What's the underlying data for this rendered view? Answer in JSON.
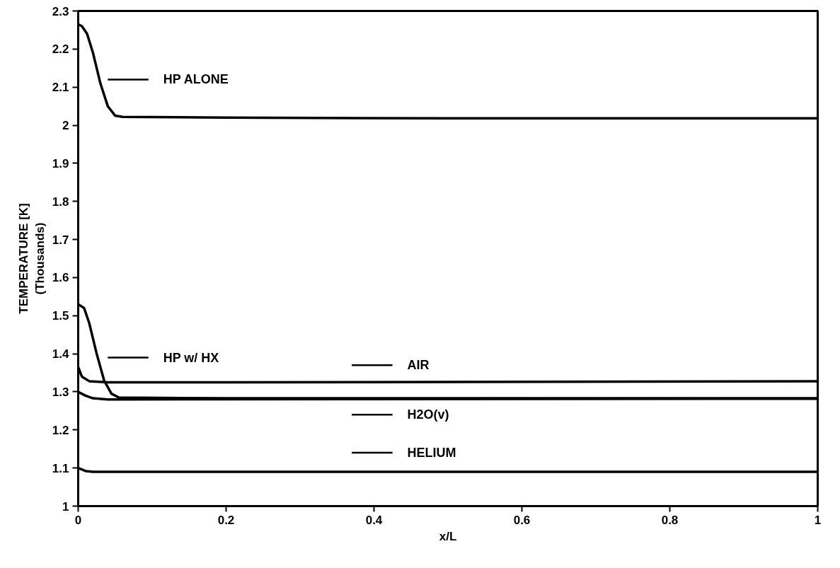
{
  "chart_data": {
    "type": "line",
    "xlabel": "x/L",
    "ylabel": "TEMPERATURE [K]\n(Thousands)",
    "xlim": [
      0,
      1
    ],
    "ylim": [
      1,
      2.3
    ],
    "xticks": [
      0,
      0.2,
      0.4,
      0.6,
      0.8,
      1
    ],
    "yticks": [
      1,
      1.1,
      1.2,
      1.3,
      1.4,
      1.5,
      1.6,
      1.7,
      1.8,
      1.9,
      2,
      2.1,
      2.2,
      2.3
    ],
    "grid": false,
    "legend": "left",
    "marker": "none",
    "line_style": "solid",
    "series": [
      {
        "name": "HP ALONE",
        "color": "#000000",
        "x": [
          0,
          0.005,
          0.012,
          0.02,
          0.03,
          0.04,
          0.05,
          0.06,
          0.2,
          0.5,
          1
        ],
        "values": [
          2.265,
          2.26,
          2.24,
          2.19,
          2.11,
          2.05,
          2.025,
          2.022,
          2.02,
          2.018,
          2.018
        ]
      },
      {
        "name": "HP w/ HX",
        "color": "#000000",
        "x": [
          0,
          0.008,
          0.015,
          0.025,
          0.035,
          0.045,
          0.055,
          0.2,
          1
        ],
        "values": [
          1.53,
          1.52,
          1.48,
          1.4,
          1.33,
          1.295,
          1.285,
          1.283,
          1.283
        ]
      },
      {
        "name": "AIR",
        "color": "#000000",
        "x": [
          0,
          0.005,
          0.015,
          0.04,
          0.2,
          1
        ],
        "values": [
          1.365,
          1.34,
          1.328,
          1.325,
          1.325,
          1.328
        ]
      },
      {
        "name": "H2O(v)",
        "color": "#000000",
        "x": [
          0,
          0.01,
          0.02,
          0.04,
          1
        ],
        "values": [
          1.3,
          1.29,
          1.283,
          1.28,
          1.282
        ]
      },
      {
        "name": "HELIUM",
        "color": "#000000",
        "x": [
          0,
          0.01,
          0.02,
          1
        ],
        "values": [
          1.1,
          1.092,
          1.09,
          1.09
        ]
      }
    ]
  }
}
